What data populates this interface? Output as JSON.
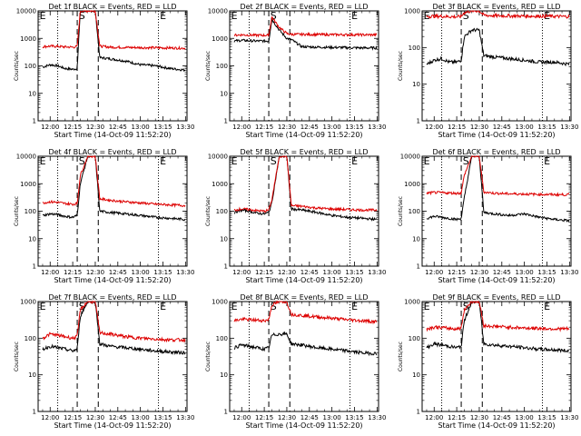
{
  "figure": {
    "ylabel": "Counts/sec",
    "xlabel": "Start Time (14-Oct-09 11:52:20)",
    "x_ticks": [
      "12:00",
      "12:15",
      "12:30",
      "12:45",
      "13:00",
      "13:15",
      "13:30"
    ],
    "y_ticks_default": [
      "1",
      "10",
      "100",
      "1000",
      "10000"
    ],
    "y_ticks_short": [
      "1",
      "10",
      "100",
      "1000"
    ],
    "colors": {
      "events": "#000000",
      "lld": "#dd0000"
    }
  },
  "chart_data": [
    {
      "type": "line",
      "title": "Det 1f BLACK = Events, RED = LLD",
      "ylim": [
        1,
        10000
      ],
      "markers": [
        "E",
        "S",
        "E"
      ],
      "series": [
        {
          "name": "Events",
          "x": [
            "11:55",
            "12:00",
            "12:05",
            "12:10",
            "12:15",
            "12:18",
            "12:20",
            "12:25",
            "12:30",
            "12:33",
            "12:40",
            "12:50",
            "13:00",
            "13:10",
            "13:20",
            "13:30"
          ],
          "y": [
            90,
            110,
            100,
            80,
            75,
            80,
            10000,
            10000,
            10000,
            200,
            180,
            150,
            110,
            100,
            80,
            70
          ]
        },
        {
          "name": "LLD",
          "x": [
            "11:55",
            "12:00",
            "12:05",
            "12:10",
            "12:15",
            "12:18",
            "12:20",
            "12:25",
            "12:30",
            "12:33",
            "12:40",
            "12:50",
            "13:00",
            "13:10",
            "13:20",
            "13:30"
          ],
          "y": [
            500,
            520,
            510,
            490,
            480,
            500,
            10000,
            10000,
            10000,
            520,
            480,
            470,
            460,
            455,
            450,
            440
          ]
        }
      ]
    },
    {
      "type": "line",
      "title": "Det 2f BLACK = Events, RED = LLD",
      "ylim": [
        1,
        10000
      ],
      "markers": [
        "E",
        "S",
        "E"
      ],
      "series": [
        {
          "name": "Events",
          "x": [
            "11:55",
            "12:00",
            "12:05",
            "12:10",
            "12:15",
            "12:18",
            "12:20",
            "12:25",
            "12:30",
            "12:33",
            "12:40",
            "12:50",
            "13:00",
            "13:10",
            "13:20",
            "13:30"
          ],
          "y": [
            800,
            850,
            820,
            800,
            800,
            800,
            5000,
            2000,
            1000,
            900,
            500,
            480,
            470,
            460,
            450,
            450
          ]
        },
        {
          "name": "LLD",
          "x": [
            "11:55",
            "12:00",
            "12:05",
            "12:10",
            "12:15",
            "12:18",
            "12:20",
            "12:25",
            "12:30",
            "12:33",
            "12:40",
            "12:50",
            "13:00",
            "13:10",
            "13:20",
            "13:30"
          ],
          "y": [
            1300,
            1350,
            1320,
            1300,
            1300,
            1300,
            6000,
            2500,
            1500,
            1400,
            1400,
            1380,
            1370,
            1360,
            1350,
            1350
          ]
        }
      ]
    },
    {
      "type": "line",
      "title": "Det 3f BLACK = Events, RED = LLD",
      "ylim": [
        1,
        1000
      ],
      "markers": [
        "E",
        "S",
        "E"
      ],
      "series": [
        {
          "name": "Events",
          "x": [
            "11:55",
            "12:00",
            "12:05",
            "12:10",
            "12:15",
            "12:18",
            "12:20",
            "12:25",
            "12:30",
            "12:33",
            "12:40",
            "12:50",
            "13:00",
            "13:10",
            "13:20",
            "13:30"
          ],
          "y": [
            35,
            45,
            50,
            40,
            40,
            45,
            200,
            300,
            300,
            60,
            55,
            50,
            45,
            40,
            40,
            35
          ]
        },
        {
          "name": "LLD",
          "x": [
            "11:55",
            "12:00",
            "12:05",
            "12:10",
            "12:15",
            "12:18",
            "12:20",
            "12:25",
            "12:30",
            "12:33",
            "12:40",
            "12:50",
            "13:00",
            "13:10",
            "13:20",
            "13:30"
          ],
          "y": [
            700,
            720,
            710,
            700,
            690,
            700,
            900,
            1000,
            1000,
            760,
            740,
            730,
            720,
            720,
            710,
            700
          ]
        }
      ]
    },
    {
      "type": "line",
      "title": "Det 4f BLACK = Events, RED = LLD",
      "ylim": [
        1,
        10000
      ],
      "markers": [
        "E",
        "S",
        "E"
      ],
      "series": [
        {
          "name": "Events",
          "x": [
            "11:55",
            "12:00",
            "12:05",
            "12:10",
            "12:15",
            "12:18",
            "12:20",
            "12:25",
            "12:30",
            "12:33",
            "12:40",
            "12:50",
            "13:00",
            "13:10",
            "13:20",
            "13:30"
          ],
          "y": [
            70,
            80,
            75,
            65,
            60,
            70,
            1000,
            10000,
            10000,
            100,
            90,
            80,
            70,
            60,
            55,
            50
          ]
        },
        {
          "name": "LLD",
          "x": [
            "11:55",
            "12:00",
            "12:05",
            "12:10",
            "12:15",
            "12:18",
            "12:20",
            "12:25",
            "12:30",
            "12:33",
            "12:40",
            "12:50",
            "13:00",
            "13:10",
            "13:20",
            "13:30"
          ],
          "y": [
            200,
            220,
            210,
            190,
            180,
            190,
            2000,
            10000,
            10000,
            280,
            250,
            220,
            200,
            180,
            170,
            160
          ]
        }
      ]
    },
    {
      "type": "line",
      "title": "Det 5f BLACK = Events, RED = LLD",
      "ylim": [
        1,
        10000
      ],
      "markers": [
        "E",
        "S",
        "E"
      ],
      "series": [
        {
          "name": "Events",
          "x": [
            "11:55",
            "12:00",
            "12:05",
            "12:10",
            "12:15",
            "12:18",
            "12:20",
            "12:25",
            "12:30",
            "12:33",
            "12:40",
            "12:50",
            "13:00",
            "13:10",
            "13:20",
            "13:30"
          ],
          "y": [
            90,
            110,
            100,
            85,
            80,
            90,
            200,
            10000,
            10000,
            120,
            110,
            90,
            70,
            60,
            55,
            50
          ]
        },
        {
          "name": "LLD",
          "x": [
            "11:55",
            "12:00",
            "12:05",
            "12:10",
            "12:15",
            "12:18",
            "12:20",
            "12:25",
            "12:30",
            "12:33",
            "12:40",
            "12:50",
            "13:00",
            "13:10",
            "13:20",
            "13:30"
          ],
          "y": [
            110,
            120,
            115,
            105,
            100,
            110,
            250,
            10000,
            10000,
            160,
            150,
            130,
            120,
            115,
            110,
            110
          ]
        }
      ]
    },
    {
      "type": "line",
      "title": "Det 6f BLACK = Events, RED = LLD",
      "ylim": [
        1,
        10000
      ],
      "markers": [
        "E",
        "S",
        "E"
      ],
      "series": [
        {
          "name": "Events",
          "x": [
            "11:55",
            "12:00",
            "12:05",
            "12:10",
            "12:15",
            "12:18",
            "12:20",
            "12:25",
            "12:30",
            "12:33",
            "12:40",
            "12:50",
            "13:00",
            "13:10",
            "13:20",
            "13:30"
          ],
          "y": [
            55,
            65,
            60,
            55,
            50,
            55,
            300,
            10000,
            10000,
            90,
            80,
            70,
            80,
            60,
            50,
            45
          ]
        },
        {
          "name": "LLD",
          "x": [
            "11:55",
            "12:00",
            "12:05",
            "12:10",
            "12:15",
            "12:18",
            "12:20",
            "12:25",
            "12:30",
            "12:33",
            "12:40",
            "12:50",
            "13:00",
            "13:10",
            "13:20",
            "13:30"
          ],
          "y": [
            450,
            480,
            470,
            460,
            450,
            460,
            2000,
            10000,
            10000,
            500,
            450,
            430,
            420,
            410,
            400,
            400
          ]
        }
      ]
    },
    {
      "type": "line",
      "title": "Det 7f BLACK = Events, RED = LLD",
      "ylim": [
        1,
        1000
      ],
      "markers": [
        "E",
        "S",
        "E"
      ],
      "series": [
        {
          "name": "Events",
          "x": [
            "11:55",
            "12:00",
            "12:05",
            "12:10",
            "12:15",
            "12:18",
            "12:20",
            "12:25",
            "12:30",
            "12:33",
            "12:40",
            "12:50",
            "13:00",
            "13:10",
            "13:20",
            "13:30"
          ],
          "y": [
            50,
            60,
            55,
            50,
            45,
            50,
            400,
            1000,
            1000,
            70,
            60,
            55,
            50,
            45,
            42,
            40
          ]
        },
        {
          "name": "LLD",
          "x": [
            "11:55",
            "12:00",
            "12:05",
            "12:10",
            "12:15",
            "12:18",
            "12:20",
            "12:25",
            "12:30",
            "12:33",
            "12:40",
            "12:50",
            "13:00",
            "13:10",
            "13:20",
            "13:30"
          ],
          "y": [
            100,
            130,
            120,
            110,
            100,
            110,
            600,
            1000,
            1000,
            140,
            130,
            110,
            100,
            95,
            90,
            90
          ]
        }
      ]
    },
    {
      "type": "line",
      "title": "Det 8f BLACK = Events, RED = LLD",
      "ylim": [
        1,
        1000
      ],
      "markers": [
        "E",
        "S",
        "E"
      ],
      "series": [
        {
          "name": "Events",
          "x": [
            "11:55",
            "12:00",
            "12:05",
            "12:10",
            "12:15",
            "12:18",
            "12:20",
            "12:25",
            "12:30",
            "12:33",
            "12:40",
            "12:50",
            "13:00",
            "13:10",
            "13:20",
            "13:30"
          ],
          "y": [
            55,
            65,
            60,
            55,
            50,
            55,
            120,
            130,
            130,
            70,
            65,
            55,
            50,
            45,
            40,
            38
          ]
        },
        {
          "name": "LLD",
          "x": [
            "11:55",
            "12:00",
            "12:05",
            "12:10",
            "12:15",
            "12:18",
            "12:20",
            "12:25",
            "12:30",
            "12:33",
            "12:40",
            "12:50",
            "13:00",
            "13:10",
            "13:20",
            "13:30"
          ],
          "y": [
            300,
            330,
            320,
            310,
            300,
            320,
            800,
            1000,
            1000,
            450,
            420,
            380,
            350,
            320,
            300,
            280
          ]
        }
      ]
    },
    {
      "type": "line",
      "title": "Det 9f BLACK = Events, RED = LLD",
      "ylim": [
        1,
        1000
      ],
      "markers": [
        "E",
        "S",
        "E"
      ],
      "series": [
        {
          "name": "Events",
          "x": [
            "11:55",
            "12:00",
            "12:05",
            "12:10",
            "12:15",
            "12:18",
            "12:20",
            "12:25",
            "12:30",
            "12:33",
            "12:40",
            "12:50",
            "13:00",
            "13:10",
            "13:20",
            "13:30"
          ],
          "y": [
            55,
            70,
            65,
            60,
            55,
            60,
            300,
            1000,
            1000,
            70,
            65,
            60,
            55,
            50,
            48,
            45
          ]
        },
        {
          "name": "LLD",
          "x": [
            "11:55",
            "12:00",
            "12:05",
            "12:10",
            "12:15",
            "12:18",
            "12:20",
            "12:25",
            "12:30",
            "12:33",
            "12:40",
            "12:50",
            "13:00",
            "13:10",
            "13:20",
            "13:30"
          ],
          "y": [
            180,
            200,
            195,
            185,
            180,
            190,
            600,
            1000,
            1000,
            220,
            210,
            200,
            190,
            185,
            180,
            180
          ]
        }
      ]
    }
  ]
}
